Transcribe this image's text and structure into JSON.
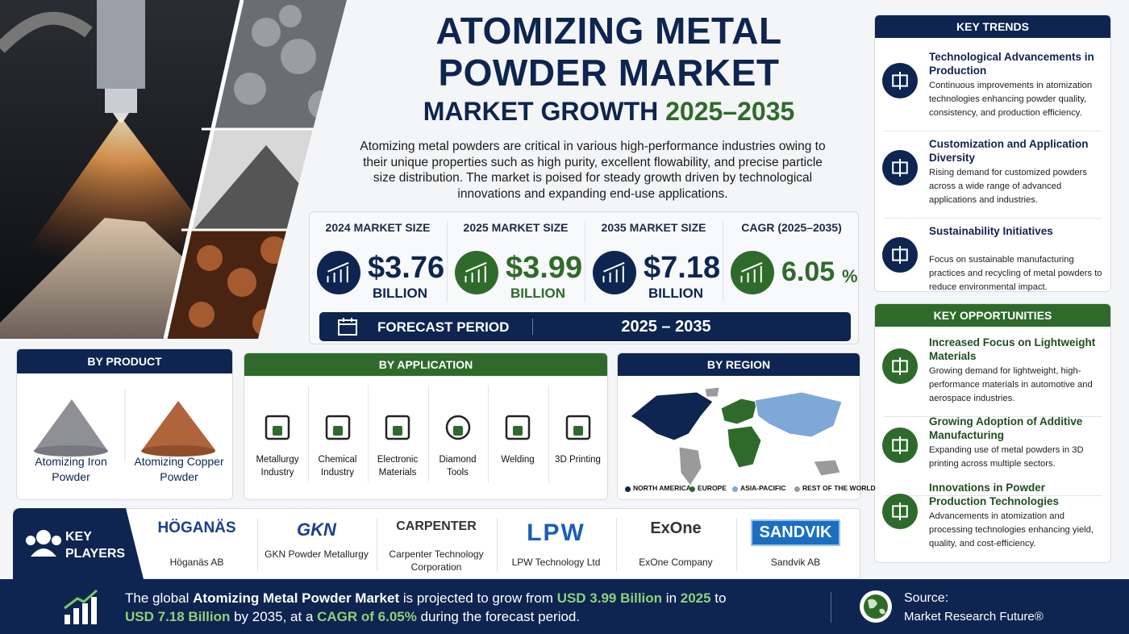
{
  "header": {
    "title": "ATOMIZING METAL POWDER MARKET",
    "subtitle": "MARKET GROWTH",
    "subtitle_period": "2025–2035",
    "description": "Atomizing metal powders are critical in various high-performance industries owing to their unique properties such as high purity, excellent flowability, and precise particle size distribution. The market is poised for steady growth driven by technological innovations and expanding end-use applications."
  },
  "stats": [
    {
      "label": "2024 MARKET SIZE",
      "value": "$3.76",
      "unit": "BILLION",
      "color": "#0d2550"
    },
    {
      "label": "2025 MARKET SIZE",
      "value": "$3.99",
      "unit": "BILLION",
      "color": "#2e6b2a"
    },
    {
      "label": "2035 MARKET SIZE",
      "value": "$7.18",
      "unit": "BILLION",
      "color": "#0d2550"
    },
    {
      "label": "CAGR (2025–2035)",
      "value": "6.05",
      "unit": "%",
      "color": "#2e6b2a"
    }
  ],
  "forecast": {
    "label": "FORECAST PERIOD",
    "value": "2025 – 2035"
  },
  "by_product": {
    "title": "BY PRODUCT",
    "items": [
      "Atomizing Iron Powder",
      "Atomizing Copper Powder"
    ]
  },
  "by_application": {
    "title": "BY APPLICATION",
    "items": [
      "Metallurgy Industry",
      "Chemical Industry",
      "Electronic Materials",
      "Diamond Tools",
      "Welding",
      "3D Printing"
    ]
  },
  "by_region": {
    "title": "BY REGION",
    "legend": [
      {
        "name": "NORTH AMERICA",
        "color": "#0d2550"
      },
      {
        "name": "EUROPE",
        "color": "#2e6b2a"
      },
      {
        "name": "ASIA-PACIFIC",
        "color": "#7ea8d8"
      },
      {
        "name": "REST OF THE WORLD",
        "color": "#9a9a9a"
      }
    ]
  },
  "key_players": {
    "title": "KEY PLAYERS",
    "players": [
      {
        "logo": "HÖGANÄS",
        "name": "Höganäs AB"
      },
      {
        "logo": "GKN",
        "name": "GKN Powder Metallurgy"
      },
      {
        "logo": "CARPENTER",
        "name": "Carpenter Technology Corporation"
      },
      {
        "logo": "LPW",
        "name": "LPW Technology Ltd"
      },
      {
        "logo": "ExOne",
        "name": "ExOne Company"
      },
      {
        "logo": "SANDVIK",
        "name": "Sandvik AB"
      }
    ]
  },
  "key_trends": {
    "title": "KEY TRENDS",
    "items": [
      {
        "title": "Technological Advancements in Production",
        "text": "Continuous improvements in atomization technologies enhancing powder quality, consistency, and production efficiency."
      },
      {
        "title": "Customization and Application Diversity",
        "text": "Rising demand for customized powders across a wide range of advanced applications and industries."
      },
      {
        "title": "Sustainability Initiatives",
        "text": "Focus on sustainable manufacturing practices and recycling of metal powders to reduce environmental impact."
      }
    ]
  },
  "key_opportunities": {
    "title": "KEY OPPORTUNITIES",
    "items": [
      {
        "title": "Increased Focus on Lightweight Materials",
        "text": "Growing demand for lightweight, high-performance materials in automotive and aerospace industries."
      },
      {
        "title": "Growing Adoption of Additive Manufacturing",
        "text": "Expanding use of metal powders in 3D printing across multiple sectors."
      },
      {
        "title": "Innovations in Powder Production Technologies",
        "text": "Advancements in atomization and processing technologies enhancing yield, quality, and cost-efficiency."
      }
    ]
  },
  "footer": {
    "statement": [
      {
        "text": "The global ",
        "style": "plain"
      },
      {
        "text": "Atomizing Metal Powder Market",
        "style": "bold"
      },
      {
        "text": " is projected to grow from ",
        "style": "plain"
      },
      {
        "text": "USD 3.99 Billion",
        "style": "accent"
      },
      {
        "text": " in ",
        "style": "plain"
      },
      {
        "text": "2025",
        "style": "accent"
      },
      {
        "text": " to ",
        "style": "plain"
      },
      {
        "text": "USD 7.18 Billion",
        "style": "accent"
      },
      {
        "text": " by 2035, at a ",
        "style": "plain"
      },
      {
        "text": "CAGR of 6.05%",
        "style": "accent"
      },
      {
        "text": " during the forecast period.",
        "style": "plain"
      }
    ],
    "source_label": "Source:",
    "source": "Market Research Future®"
  }
}
